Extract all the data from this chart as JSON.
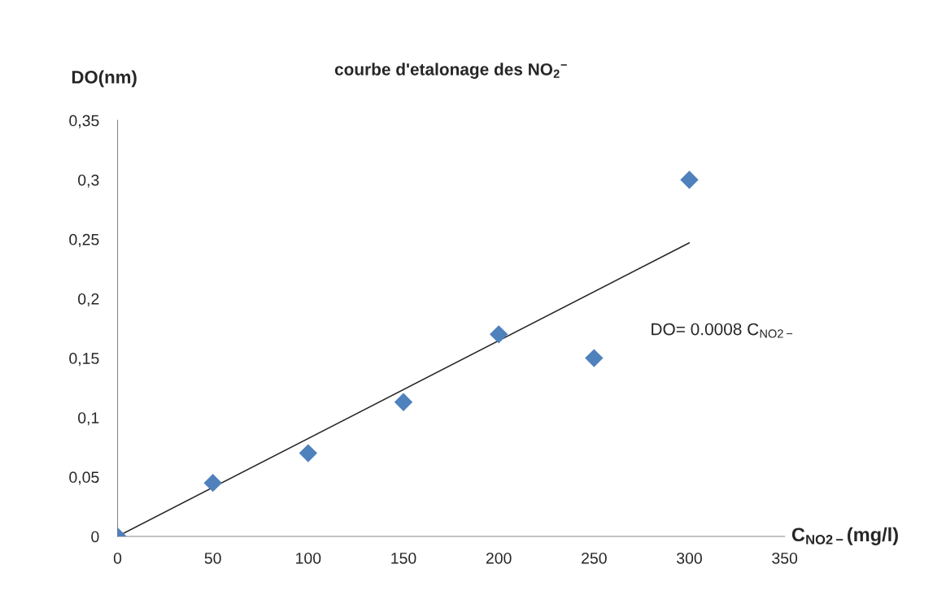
{
  "chart_data": {
    "type": "scatter",
    "title": "courbe d'etalonage des NO$_{2}$$^{−}$",
    "ylabel": "DO(nm)",
    "xlabel": "C$_{NO2−}$(mg/l)",
    "series": [
      {
        "color": "#4f81bd",
        "marker": "diamond",
        "x": [
          0,
          50,
          100,
          150,
          200,
          250,
          300
        ],
        "values": [
          0,
          0.045,
          0.07,
          0.113,
          0.17,
          0.15,
          0.3
        ]
      },
      {
        "type": "line",
        "color": "#262626",
        "line_style": "solid",
        "x": [
          0,
          300
        ],
        "values": [
          0,
          0.247
        ]
      }
    ],
    "annotations": [
      "DO= 0.0008 C$_{NO2−}$"
    ],
    "xlim": [
      0,
      350
    ],
    "xticks": [
      0,
      50,
      100,
      150,
      200,
      250,
      300,
      350
    ],
    "ylim": [
      0,
      0.35
    ],
    "yticks": [
      0,
      {
        "value": 0.05,
        "label": "0,05"
      },
      {
        "value": 0.1,
        "label": "0,1"
      },
      {
        "value": 0.15,
        "label": "0,15"
      },
      {
        "value": 0.2,
        "label": "0,2"
      },
      {
        "value": 0.25,
        "label": "0,25"
      },
      {
        "value": 0.3,
        "label": "0,3"
      },
      {
        "value": 0.35,
        "label": "0,35"
      }
    ],
    "grid": false,
    "legend": false
  }
}
